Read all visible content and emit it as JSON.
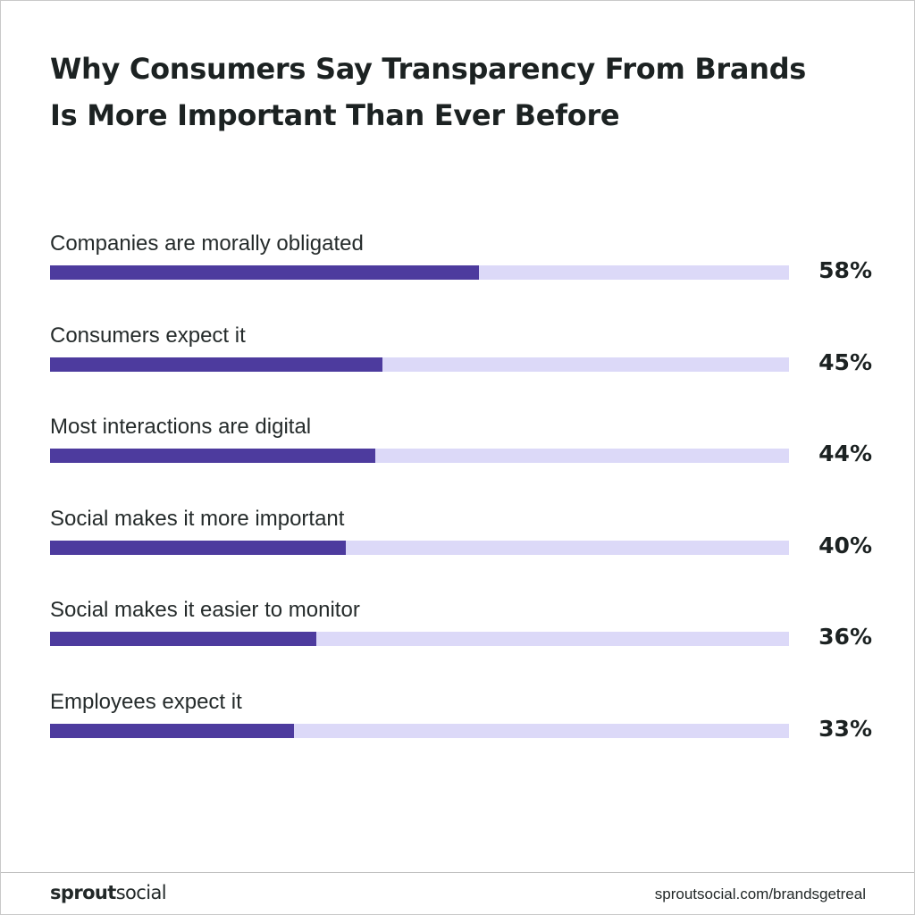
{
  "chart_data": {
    "type": "bar",
    "orientation": "horizontal",
    "title_lines": [
      "Why Consumers Say Transparency From Brands",
      "Is More Important Than Ever Before"
    ],
    "categories": [
      "Companies are morally obligated",
      "Consumers expect it",
      "Most interactions are digital",
      "Social makes it more important",
      "Social makes it easier to monitor",
      "Employees expect it"
    ],
    "values": [
      58,
      45,
      44,
      40,
      36,
      33
    ],
    "value_labels": [
      "58%",
      "45%",
      "44%",
      "40%",
      "36%",
      "33%"
    ],
    "xlim": [
      0,
      100
    ],
    "grid": false,
    "legend": "none",
    "colors": {
      "bar": "#4d3b9e",
      "track": "#dcd9f8",
      "text": "#1c2222"
    }
  },
  "footer": {
    "logo": {
      "part1": "sprout",
      "part2": "social"
    },
    "source": "sproutsocial.com/brandsgetreal"
  }
}
